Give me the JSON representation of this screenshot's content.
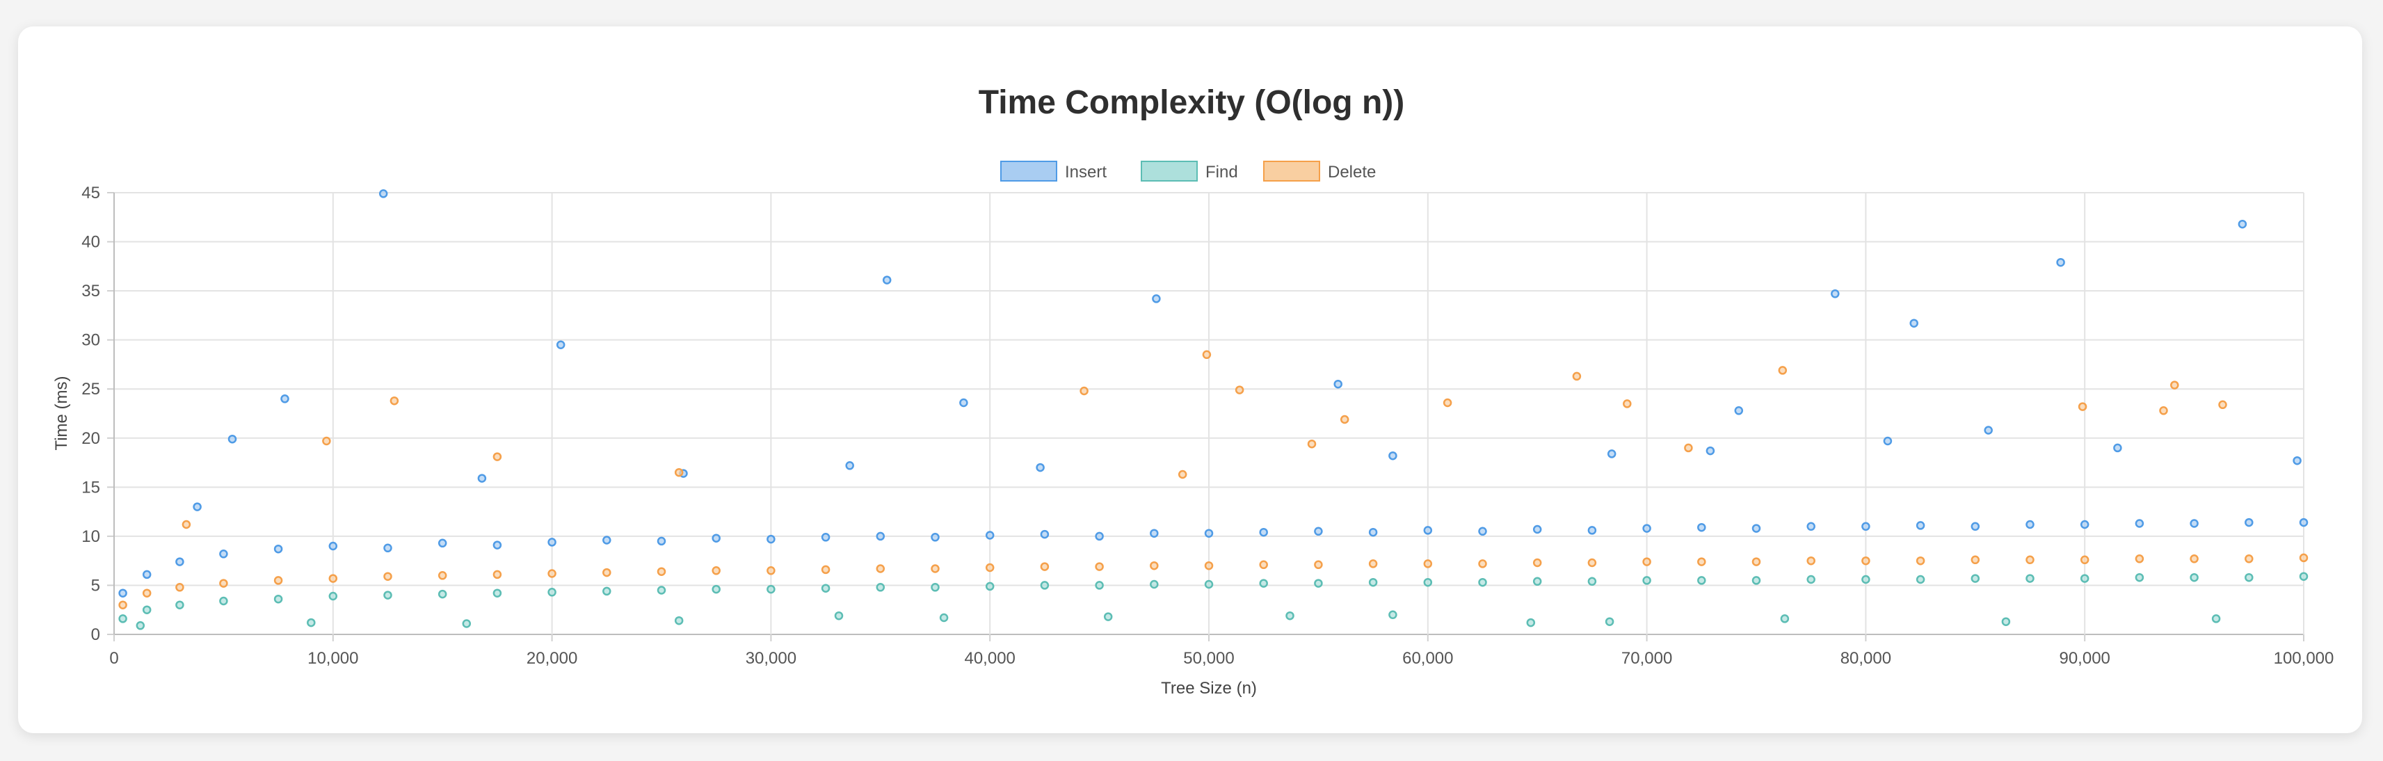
{
  "chart_data": {
    "type": "scatter",
    "title": "Time Complexity (O(log n))",
    "xlabel": "Tree Size (n)",
    "ylabel": "Time (ms)",
    "xlim": [
      0,
      100000
    ],
    "ylim": [
      0,
      45
    ],
    "x_ticks": [
      "0",
      "10,000",
      "20,000",
      "30,000",
      "40,000",
      "50,000",
      "60,000",
      "70,000",
      "80,000",
      "90,000",
      "100,000"
    ],
    "y_ticks": [
      "0",
      "5",
      "10",
      "15",
      "20",
      "25",
      "30",
      "35",
      "40",
      "45"
    ],
    "grid": true,
    "legend_position": "top-center",
    "series": [
      {
        "name": "Insert",
        "color": "#4f9be6",
        "fill": "#a9cdf2",
        "points": [
          [
            400,
            4.2
          ],
          [
            1500,
            6.1
          ],
          [
            3000,
            7.4
          ],
          [
            5000,
            8.2
          ],
          [
            7500,
            8.7
          ],
          [
            10000,
            9.0
          ],
          [
            12500,
            8.8
          ],
          [
            15000,
            9.3
          ],
          [
            17500,
            9.1
          ],
          [
            20000,
            9.4
          ],
          [
            22500,
            9.6
          ],
          [
            25000,
            9.5
          ],
          [
            27500,
            9.8
          ],
          [
            30000,
            9.7
          ],
          [
            32500,
            9.9
          ],
          [
            35000,
            10.0
          ],
          [
            37500,
            9.9
          ],
          [
            40000,
            10.1
          ],
          [
            42500,
            10.2
          ],
          [
            45000,
            10.0
          ],
          [
            47500,
            10.3
          ],
          [
            50000,
            10.3
          ],
          [
            52500,
            10.4
          ],
          [
            55000,
            10.5
          ],
          [
            57500,
            10.4
          ],
          [
            60000,
            10.6
          ],
          [
            62500,
            10.5
          ],
          [
            65000,
            10.7
          ],
          [
            67500,
            10.6
          ],
          [
            70000,
            10.8
          ],
          [
            72500,
            10.9
          ],
          [
            75000,
            10.8
          ],
          [
            77500,
            11.0
          ],
          [
            80000,
            11.0
          ],
          [
            82500,
            11.1
          ],
          [
            85000,
            11.0
          ],
          [
            87500,
            11.2
          ],
          [
            90000,
            11.2
          ],
          [
            92500,
            11.3
          ],
          [
            95000,
            11.3
          ],
          [
            97500,
            11.4
          ],
          [
            100000,
            11.4
          ],
          [
            5400,
            19.9
          ],
          [
            7800,
            24.0
          ],
          [
            12300,
            44.9
          ],
          [
            20400,
            29.5
          ],
          [
            35300,
            36.1
          ],
          [
            38800,
            23.6
          ],
          [
            47600,
            34.2
          ],
          [
            55900,
            25.5
          ],
          [
            74200,
            22.8
          ],
          [
            78600,
            34.7
          ],
          [
            82200,
            31.7
          ],
          [
            88900,
            37.9
          ],
          [
            97200,
            41.8
          ],
          [
            3800,
            13.0
          ],
          [
            16800,
            15.9
          ],
          [
            26000,
            16.4
          ],
          [
            33600,
            17.2
          ],
          [
            42300,
            17.0
          ],
          [
            58400,
            18.2
          ],
          [
            68400,
            18.4
          ],
          [
            72900,
            18.7
          ],
          [
            81000,
            19.7
          ],
          [
            85600,
            20.8
          ],
          [
            91500,
            19.0
          ],
          [
            99700,
            17.7
          ]
        ]
      },
      {
        "name": "Find",
        "color": "#5cbdb4",
        "fill": "#ade0dc",
        "points": [
          [
            400,
            1.6
          ],
          [
            1500,
            2.5
          ],
          [
            3000,
            3.0
          ],
          [
            5000,
            3.4
          ],
          [
            7500,
            3.6
          ],
          [
            10000,
            3.9
          ],
          [
            12500,
            4.0
          ],
          [
            15000,
            4.1
          ],
          [
            17500,
            4.2
          ],
          [
            20000,
            4.3
          ],
          [
            22500,
            4.4
          ],
          [
            25000,
            4.5
          ],
          [
            27500,
            4.6
          ],
          [
            30000,
            4.6
          ],
          [
            32500,
            4.7
          ],
          [
            35000,
            4.8
          ],
          [
            37500,
            4.8
          ],
          [
            40000,
            4.9
          ],
          [
            42500,
            5.0
          ],
          [
            45000,
            5.0
          ],
          [
            47500,
            5.1
          ],
          [
            50000,
            5.1
          ],
          [
            52500,
            5.2
          ],
          [
            55000,
            5.2
          ],
          [
            57500,
            5.3
          ],
          [
            60000,
            5.3
          ],
          [
            62500,
            5.3
          ],
          [
            65000,
            5.4
          ],
          [
            67500,
            5.4
          ],
          [
            70000,
            5.5
          ],
          [
            72500,
            5.5
          ],
          [
            75000,
            5.5
          ],
          [
            77500,
            5.6
          ],
          [
            80000,
            5.6
          ],
          [
            82500,
            5.6
          ],
          [
            85000,
            5.7
          ],
          [
            87500,
            5.7
          ],
          [
            90000,
            5.7
          ],
          [
            92500,
            5.8
          ],
          [
            95000,
            5.8
          ],
          [
            97500,
            5.8
          ],
          [
            100000,
            5.9
          ],
          [
            1200,
            0.9
          ],
          [
            9000,
            1.2
          ],
          [
            16100,
            1.1
          ],
          [
            25800,
            1.4
          ],
          [
            37900,
            1.7
          ],
          [
            45400,
            1.8
          ],
          [
            53700,
            1.9
          ],
          [
            64700,
            1.2
          ],
          [
            68300,
            1.3
          ],
          [
            76300,
            1.6
          ],
          [
            86400,
            1.3
          ],
          [
            96000,
            1.6
          ],
          [
            58400,
            2.0
          ],
          [
            33100,
            1.9
          ]
        ]
      },
      {
        "name": "Delete",
        "color": "#f5a04a",
        "fill": "#f9cfa1",
        "points": [
          [
            400,
            3.0
          ],
          [
            1500,
            4.2
          ],
          [
            3000,
            4.8
          ],
          [
            5000,
            5.2
          ],
          [
            7500,
            5.5
          ],
          [
            10000,
            5.7
          ],
          [
            12500,
            5.9
          ],
          [
            15000,
            6.0
          ],
          [
            17500,
            6.1
          ],
          [
            20000,
            6.2
          ],
          [
            22500,
            6.3
          ],
          [
            25000,
            6.4
          ],
          [
            27500,
            6.5
          ],
          [
            30000,
            6.5
          ],
          [
            32500,
            6.6
          ],
          [
            35000,
            6.7
          ],
          [
            37500,
            6.7
          ],
          [
            40000,
            6.8
          ],
          [
            42500,
            6.9
          ],
          [
            45000,
            6.9
          ],
          [
            47500,
            7.0
          ],
          [
            50000,
            7.0
          ],
          [
            52500,
            7.1
          ],
          [
            55000,
            7.1
          ],
          [
            57500,
            7.2
          ],
          [
            60000,
            7.2
          ],
          [
            62500,
            7.2
          ],
          [
            65000,
            7.3
          ],
          [
            67500,
            7.3
          ],
          [
            70000,
            7.4
          ],
          [
            72500,
            7.4
          ],
          [
            75000,
            7.4
          ],
          [
            77500,
            7.5
          ],
          [
            80000,
            7.5
          ],
          [
            82500,
            7.5
          ],
          [
            85000,
            7.6
          ],
          [
            87500,
            7.6
          ],
          [
            90000,
            7.6
          ],
          [
            92500,
            7.7
          ],
          [
            95000,
            7.7
          ],
          [
            97500,
            7.7
          ],
          [
            100000,
            7.8
          ],
          [
            9700,
            19.7
          ],
          [
            12800,
            23.8
          ],
          [
            17500,
            18.1
          ],
          [
            25800,
            16.5
          ],
          [
            44300,
            24.8
          ],
          [
            48800,
            16.3
          ],
          [
            49900,
            28.5
          ],
          [
            51400,
            24.9
          ],
          [
            54700,
            19.4
          ],
          [
            56200,
            21.9
          ],
          [
            60900,
            23.6
          ],
          [
            66800,
            26.3
          ],
          [
            69100,
            23.5
          ],
          [
            76200,
            26.9
          ],
          [
            89900,
            23.2
          ],
          [
            93600,
            22.8
          ],
          [
            94100,
            25.4
          ],
          [
            96300,
            23.4
          ],
          [
            71900,
            19.0
          ],
          [
            3300,
            11.2
          ]
        ]
      }
    ]
  }
}
